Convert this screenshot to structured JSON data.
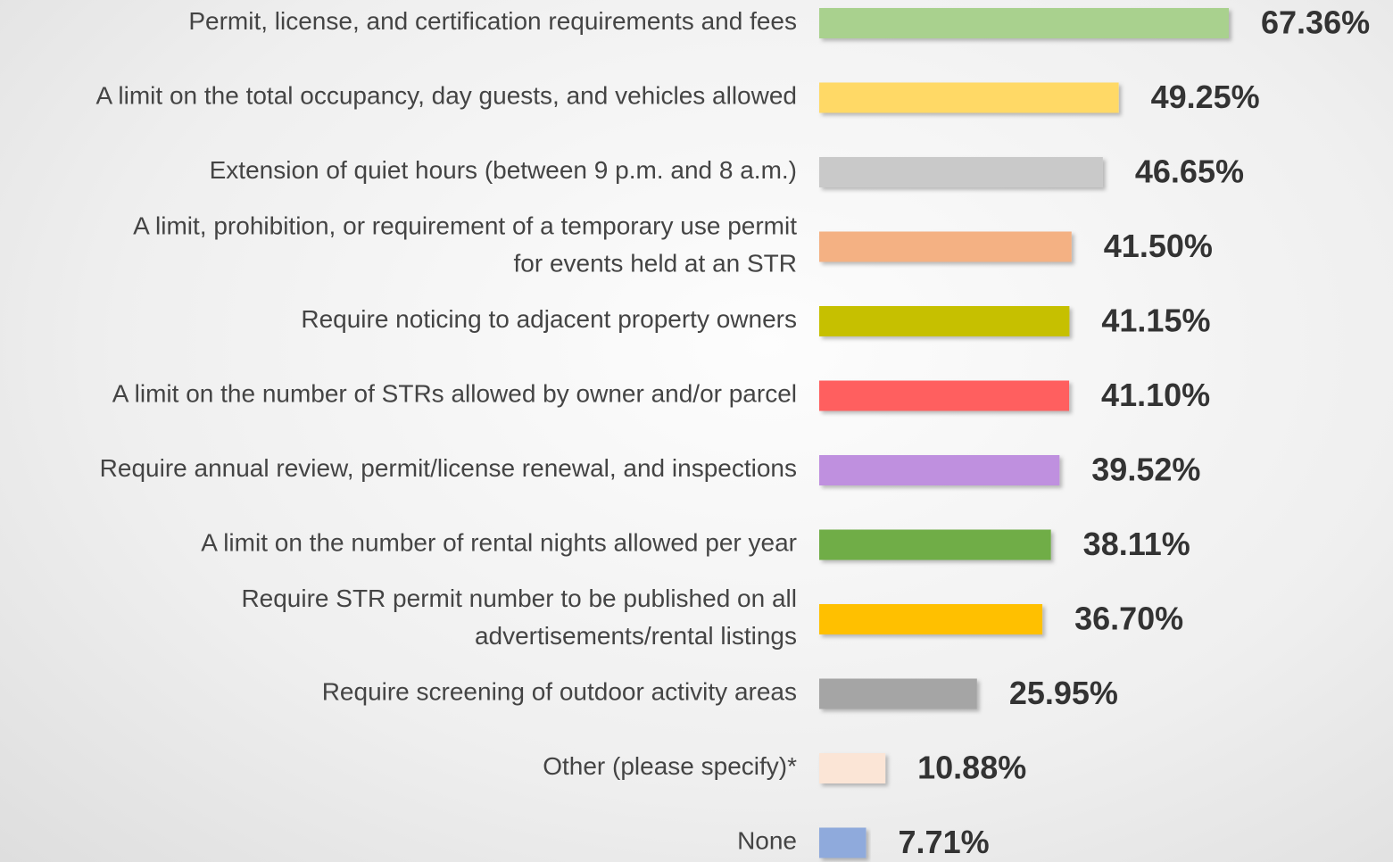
{
  "chart_data": {
    "type": "bar",
    "orientation": "horizontal",
    "categories": [
      "Permit, license, and certification requirements and fees",
      "A limit on the total occupancy, day guests, and vehicles allowed",
      "Extension of quiet hours (between 9 p.m. and 8 a.m.)",
      "A limit, prohibition, or requirement of a temporary use permit\nfor events held at an STR",
      "Require noticing to adjacent property owners",
      "A limit on the number of STRs allowed by owner and/or parcel",
      "Require annual review, permit/license renewal, and inspections",
      "A limit on the number of rental nights allowed per year",
      "Require STR permit number to be published on all\nadvertisements/rental listings",
      "Require screening of outdoor activity areas",
      "Other (please specify)*",
      "None"
    ],
    "values": [
      67.36,
      49.25,
      46.65,
      41.5,
      41.15,
      41.1,
      39.52,
      38.11,
      36.7,
      25.95,
      10.88,
      7.71
    ],
    "value_labels": [
      "67.36%",
      "49.25%",
      "46.65%",
      "41.50%",
      "41.15%",
      "41.10%",
      "39.52%",
      "38.11%",
      "36.70%",
      "25.95%",
      "10.88%",
      "7.71%"
    ],
    "colors": [
      "#a9d18e",
      "#ffd966",
      "#c9c9c9",
      "#f4b183",
      "#c6c000",
      "#ff5f5f",
      "#bf90df",
      "#70ad47",
      "#ffc000",
      "#a5a5a5",
      "#fbe5d6",
      "#8faadc"
    ]
  }
}
